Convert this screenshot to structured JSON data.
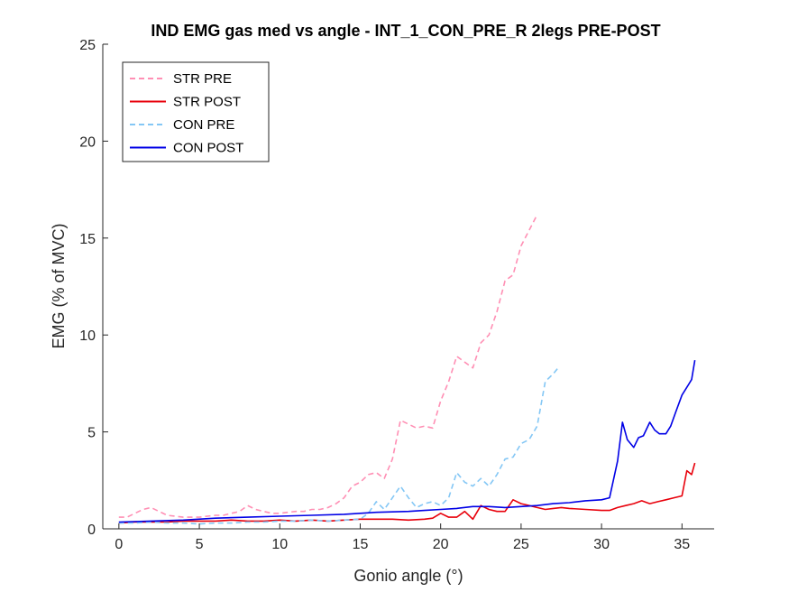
{
  "chart_data": {
    "type": "line",
    "title": "IND EMG gas med vs angle - INT_1_CON_PRE_R 2legs PRE-POST",
    "xlabel": "Gonio angle (°)",
    "ylabel": "EMG (% of MVC)",
    "xlim": [
      -1,
      37
    ],
    "ylim": [
      0,
      25
    ],
    "xticks": [
      0,
      5,
      10,
      15,
      20,
      25,
      30,
      35
    ],
    "yticks": [
      0,
      5,
      10,
      15,
      20,
      25
    ],
    "grid": false,
    "legend_position": "top-left",
    "series": [
      {
        "name": "STR PRE",
        "color": "#ff8fb4",
        "style": "dashed",
        "x": [
          0,
          0.5,
          1,
          1.5,
          2,
          2.5,
          3,
          3.5,
          4,
          4.5,
          5,
          5.5,
          6,
          6.5,
          7,
          7.5,
          8,
          8.5,
          9,
          9.5,
          10,
          10.5,
          11,
          11.5,
          12,
          12.5,
          13,
          13.5,
          14,
          14.5,
          15,
          15.5,
          16,
          16.5,
          17,
          17.5,
          18,
          18.5,
          19,
          19.5,
          20,
          20.5,
          21,
          21.5,
          22,
          22.5,
          23,
          23.5,
          24,
          24.5,
          25,
          25.5,
          26
        ],
        "y": [
          0.6,
          0.6,
          0.8,
          1.0,
          1.1,
          0.9,
          0.7,
          0.65,
          0.6,
          0.6,
          0.6,
          0.65,
          0.7,
          0.7,
          0.8,
          0.9,
          1.2,
          1.0,
          0.9,
          0.8,
          0.8,
          0.85,
          0.9,
          0.9,
          1.0,
          1.0,
          1.1,
          1.3,
          1.6,
          2.2,
          2.4,
          2.8,
          2.9,
          2.6,
          3.6,
          5.6,
          5.4,
          5.2,
          5.3,
          5.2,
          6.6,
          7.6,
          8.9,
          8.6,
          8.3,
          9.6,
          10.0,
          11.2,
          12.8,
          13.1,
          14.6,
          15.4,
          16.2
        ]
      },
      {
        "name": "STR POST",
        "color": "#e8000b",
        "style": "solid",
        "x": [
          0,
          1,
          2,
          3,
          4,
          5,
          6,
          7,
          8,
          9,
          10,
          11,
          12,
          13,
          14,
          15,
          16,
          17,
          18,
          19,
          19.5,
          20,
          20.5,
          21,
          21.5,
          22,
          22.5,
          23,
          23.5,
          24,
          24.5,
          25,
          25.5,
          26,
          26.5,
          27,
          27.5,
          28,
          29,
          30,
          30.5,
          31,
          31.5,
          32,
          32.5,
          33,
          33.5,
          34,
          34.5,
          35,
          35.3,
          35.6,
          35.8
        ],
        "y": [
          0.3,
          0.35,
          0.35,
          0.35,
          0.4,
          0.4,
          0.4,
          0.45,
          0.4,
          0.4,
          0.45,
          0.4,
          0.45,
          0.4,
          0.45,
          0.5,
          0.5,
          0.5,
          0.45,
          0.5,
          0.55,
          0.8,
          0.6,
          0.6,
          0.9,
          0.5,
          1.2,
          1.0,
          0.9,
          0.9,
          1.5,
          1.3,
          1.2,
          1.1,
          1.0,
          1.05,
          1.1,
          1.05,
          1.0,
          0.95,
          0.95,
          1.1,
          1.2,
          1.3,
          1.45,
          1.3,
          1.4,
          1.5,
          1.6,
          1.7,
          3.0,
          2.8,
          3.4
        ]
      },
      {
        "name": "CON PRE",
        "color": "#84c7f5",
        "style": "dashed",
        "x": [
          0,
          1,
          2,
          3,
          4,
          5,
          6,
          7,
          8,
          9,
          10,
          11,
          12,
          13,
          14,
          15,
          15.5,
          16,
          16.5,
          17,
          17.5,
          18,
          18.5,
          19,
          19.5,
          20,
          20.5,
          21,
          21.5,
          22,
          22.5,
          23,
          23.5,
          24,
          24.5,
          25,
          25.5,
          26,
          26.5,
          27,
          27.3
        ],
        "y": [
          0.3,
          0.3,
          0.35,
          0.3,
          0.3,
          0.25,
          0.3,
          0.3,
          0.35,
          0.35,
          0.4,
          0.4,
          0.45,
          0.4,
          0.45,
          0.5,
          0.8,
          1.4,
          1.0,
          1.6,
          2.2,
          1.6,
          1.1,
          1.3,
          1.4,
          1.2,
          1.6,
          2.9,
          2.4,
          2.2,
          2.6,
          2.2,
          2.8,
          3.6,
          3.7,
          4.4,
          4.6,
          5.3,
          7.6,
          8.0,
          8.3
        ]
      },
      {
        "name": "CON POST",
        "color": "#0000e6",
        "style": "solid",
        "x": [
          0,
          2,
          4,
          6,
          8,
          10,
          12,
          14,
          16,
          18,
          19,
          20,
          21,
          22,
          23,
          24,
          25,
          26,
          27,
          28,
          29,
          30,
          30.5,
          31,
          31.3,
          31.6,
          32,
          32.3,
          32.6,
          33,
          33.3,
          33.6,
          34,
          34.3,
          34.6,
          35,
          35.3,
          35.6,
          35.8
        ],
        "y": [
          0.35,
          0.4,
          0.45,
          0.55,
          0.6,
          0.65,
          0.7,
          0.75,
          0.85,
          0.9,
          0.95,
          1.0,
          1.05,
          1.15,
          1.15,
          1.1,
          1.15,
          1.2,
          1.3,
          1.35,
          1.45,
          1.5,
          1.6,
          3.5,
          5.5,
          4.6,
          4.2,
          4.7,
          4.8,
          5.5,
          5.1,
          4.9,
          4.9,
          5.3,
          6.0,
          6.9,
          7.3,
          7.7,
          8.7
        ]
      }
    ]
  }
}
